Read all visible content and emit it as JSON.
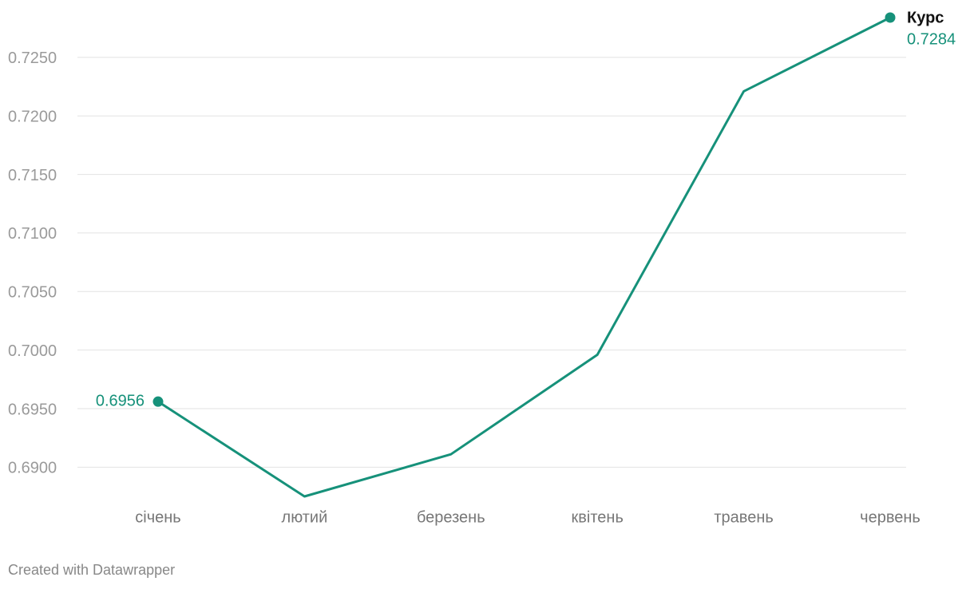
{
  "chart_data": {
    "type": "line",
    "categories": [
      "січень",
      "лютий",
      "березень",
      "квітень",
      "травень",
      "червень"
    ],
    "series": [
      {
        "name": "Курс",
        "color": "#16917a",
        "values": [
          0.6956,
          0.6875,
          0.6911,
          0.6996,
          0.7221,
          0.7284
        ]
      }
    ],
    "ylim": [
      0.6875,
      0.7284
    ],
    "yticks": [
      {
        "value": 0.69,
        "label": "0.6900"
      },
      {
        "value": 0.695,
        "label": "0.6950"
      },
      {
        "value": 0.7,
        "label": "0.7000"
      },
      {
        "value": 0.705,
        "label": "0.7050"
      },
      {
        "value": 0.71,
        "label": "0.7100"
      },
      {
        "value": 0.715,
        "label": "0.7150"
      },
      {
        "value": 0.72,
        "label": "0.7200"
      },
      {
        "value": 0.725,
        "label": "0.7250"
      }
    ],
    "grid": true,
    "footer": "Created with Datawrapper"
  }
}
